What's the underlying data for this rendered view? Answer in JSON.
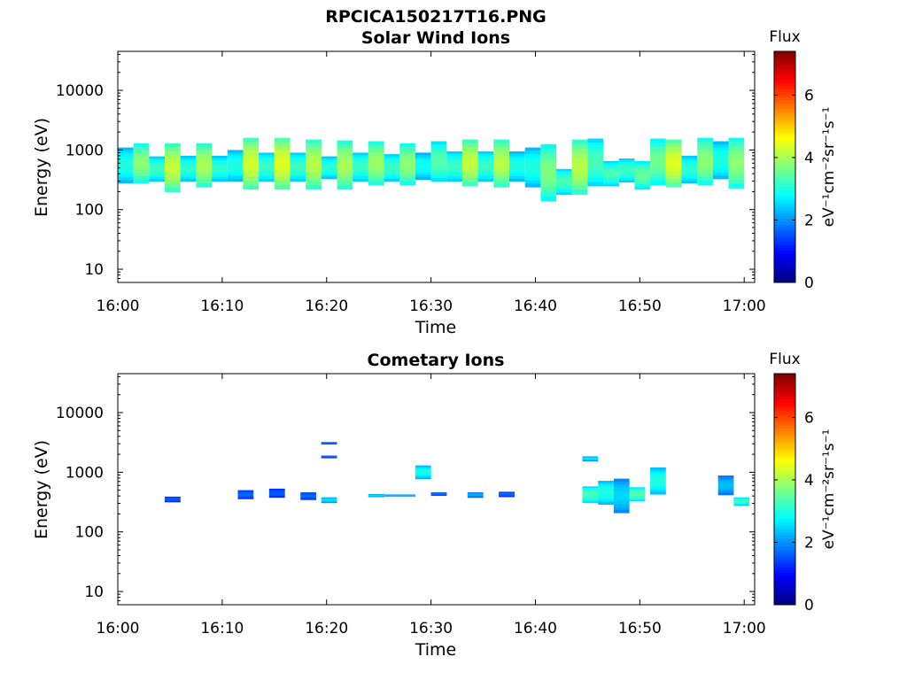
{
  "figure": {
    "file_title": "RPCICA150217T16.PNG"
  },
  "chart_data": [
    {
      "type": "heatmap",
      "title": "Solar Wind Ions",
      "xlabel": "Time",
      "ylabel": "Energy (eV)",
      "xlim": [
        "16:00",
        "17:01"
      ],
      "x_ticks": [
        "16:00",
        "16:10",
        "16:20",
        "16:30",
        "16:40",
        "16:50",
        "17:00"
      ],
      "ylim": [
        6,
        45000
      ],
      "yscale": "log",
      "y_ticks": [
        {
          "value": 10,
          "label": "10"
        },
        {
          "value": 100,
          "label": "100"
        },
        {
          "value": 1000,
          "label": "1000"
        },
        {
          "value": 10000,
          "label": "10000"
        }
      ],
      "colorbar": {
        "label": "Flux",
        "units": "eV⁻¹cm⁻²sr⁻¹s⁻¹",
        "range": [
          0,
          7.4
        ],
        "ticks": [
          0,
          2,
          4,
          6
        ],
        "colormap": "jet"
      },
      "grid": false,
      "cells": [
        {
          "t0": "16:00",
          "t1": "16:01.5",
          "e_min": 280,
          "e_max": 1100,
          "flux": 3.0
        },
        {
          "t0": "16:01.5",
          "t1": "16:03",
          "e_min": 280,
          "e_max": 1300,
          "flux": 3.8
        },
        {
          "t0": "16:03",
          "t1": "16:04.5",
          "e_min": 300,
          "e_max": 780,
          "flux": 3.2
        },
        {
          "t0": "16:04.5",
          "t1": "16:06",
          "e_min": 200,
          "e_max": 1300,
          "flux": 4.2
        },
        {
          "t0": "16:06",
          "t1": "16:07.5",
          "e_min": 300,
          "e_max": 800,
          "flux": 3.1
        },
        {
          "t0": "16:07.5",
          "t1": "16:09",
          "e_min": 240,
          "e_max": 1300,
          "flux": 4.0
        },
        {
          "t0": "16:09",
          "t1": "16:10.5",
          "e_min": 300,
          "e_max": 800,
          "flux": 3.1
        },
        {
          "t0": "16:10.5",
          "t1": "16:12",
          "e_min": 300,
          "e_max": 1000,
          "flux": 3.0
        },
        {
          "t0": "16:12",
          "t1": "16:13.5",
          "e_min": 220,
          "e_max": 1600,
          "flux": 4.3
        },
        {
          "t0": "16:13.5",
          "t1": "16:15",
          "e_min": 300,
          "e_max": 900,
          "flux": 3.2
        },
        {
          "t0": "16:15",
          "t1": "16:16.5",
          "e_min": 220,
          "e_max": 1600,
          "flux": 4.4
        },
        {
          "t0": "16:16.5",
          "t1": "16:18",
          "e_min": 300,
          "e_max": 900,
          "flux": 3.2
        },
        {
          "t0": "16:18",
          "t1": "16:19.5",
          "e_min": 220,
          "e_max": 1500,
          "flux": 4.1
        },
        {
          "t0": "16:19.5",
          "t1": "16:21",
          "e_min": 330,
          "e_max": 780,
          "flux": 3.1
        },
        {
          "t0": "16:21",
          "t1": "16:22.5",
          "e_min": 220,
          "e_max": 1450,
          "flux": 4.0
        },
        {
          "t0": "16:22.5",
          "t1": "16:24",
          "e_min": 300,
          "e_max": 900,
          "flux": 3.2
        },
        {
          "t0": "16:24",
          "t1": "16:25.5",
          "e_min": 260,
          "e_max": 1400,
          "flux": 3.9
        },
        {
          "t0": "16:25.5",
          "t1": "16:27",
          "e_min": 300,
          "e_max": 850,
          "flux": 3.2
        },
        {
          "t0": "16:27",
          "t1": "16:28.5",
          "e_min": 260,
          "e_max": 1300,
          "flux": 3.8
        },
        {
          "t0": "16:28.5",
          "t1": "16:30",
          "e_min": 320,
          "e_max": 900,
          "flux": 2.9
        },
        {
          "t0": "16:30",
          "t1": "16:31.5",
          "e_min": 300,
          "e_max": 1400,
          "flux": 3.4
        },
        {
          "t0": "16:31.5",
          "t1": "16:33",
          "e_min": 300,
          "e_max": 950,
          "flux": 3.2
        },
        {
          "t0": "16:33",
          "t1": "16:34.5",
          "e_min": 250,
          "e_max": 1500,
          "flux": 4.2
        },
        {
          "t0": "16:34.5",
          "t1": "16:36",
          "e_min": 300,
          "e_max": 950,
          "flux": 3.2
        },
        {
          "t0": "16:36",
          "t1": "16:37.5",
          "e_min": 240,
          "e_max": 1500,
          "flux": 4.1
        },
        {
          "t0": "16:37.5",
          "t1": "16:39",
          "e_min": 300,
          "e_max": 950,
          "flux": 3.0
        },
        {
          "t0": "16:39",
          "t1": "16:40.5",
          "e_min": 240,
          "e_max": 1100,
          "flux": 3.0
        },
        {
          "t0": "16:40.5",
          "t1": "16:42",
          "e_min": 140,
          "e_max": 1250,
          "flux": 3.7
        },
        {
          "t0": "16:42",
          "t1": "16:43.5",
          "e_min": 180,
          "e_max": 480,
          "flux": 3.3
        },
        {
          "t0": "16:43.5",
          "t1": "16:45",
          "e_min": 180,
          "e_max": 1500,
          "flux": 4.1
        },
        {
          "t0": "16:45",
          "t1": "16:46.5",
          "e_min": 250,
          "e_max": 1550,
          "flux": 3.3
        },
        {
          "t0": "16:46.5",
          "t1": "16:48",
          "e_min": 250,
          "e_max": 650,
          "flux": 3.3
        },
        {
          "t0": "16:48",
          "t1": "16:49.5",
          "e_min": 290,
          "e_max": 720,
          "flux": 3.2
        },
        {
          "t0": "16:49.5",
          "t1": "16:51",
          "e_min": 220,
          "e_max": 650,
          "flux": 3.5
        },
        {
          "t0": "16:51",
          "t1": "16:52.5",
          "e_min": 260,
          "e_max": 1550,
          "flux": 3.6
        },
        {
          "t0": "16:52.5",
          "t1": "16:54",
          "e_min": 240,
          "e_max": 1500,
          "flux": 4.4
        },
        {
          "t0": "16:54",
          "t1": "16:55.5",
          "e_min": 280,
          "e_max": 800,
          "flux": 3.1
        },
        {
          "t0": "16:55.5",
          "t1": "16:57",
          "e_min": 260,
          "e_max": 1600,
          "flux": 3.8
        },
        {
          "t0": "16:57",
          "t1": "16:58.5",
          "e_min": 330,
          "e_max": 1400,
          "flux": 3.0
        },
        {
          "t0": "16:58.5",
          "t1": "17:00",
          "e_min": 230,
          "e_max": 1600,
          "flux": 3.8
        }
      ]
    },
    {
      "type": "heatmap",
      "title": "Cometary Ions",
      "xlabel": "Time",
      "ylabel": "Energy (eV)",
      "xlim": [
        "16:00",
        "17:01"
      ],
      "x_ticks": [
        "16:00",
        "16:10",
        "16:20",
        "16:30",
        "16:40",
        "16:50",
        "17:00"
      ],
      "ylim": [
        6,
        45000
      ],
      "yscale": "log",
      "y_ticks": [
        {
          "value": 10,
          "label": "10"
        },
        {
          "value": 100,
          "label": "100"
        },
        {
          "value": 1000,
          "label": "1000"
        },
        {
          "value": 10000,
          "label": "10000"
        }
      ],
      "colorbar": {
        "label": "Flux",
        "units": "eV⁻¹cm⁻²sr⁻¹s⁻¹",
        "range": [
          0,
          7.4
        ],
        "ticks": [
          0,
          2,
          4,
          6
        ],
        "colormap": "jet"
      },
      "grid": false,
      "cells": [
        {
          "t0": "16:04.5",
          "t1": "16:06",
          "e_min": 320,
          "e_max": 390,
          "flux": 1.6
        },
        {
          "t0": "16:11.5",
          "t1": "16:13",
          "e_min": 360,
          "e_max": 500,
          "flux": 1.7
        },
        {
          "t0": "16:14.5",
          "t1": "16:16",
          "e_min": 380,
          "e_max": 530,
          "flux": 1.6
        },
        {
          "t0": "16:17.5",
          "t1": "16:19",
          "e_min": 350,
          "e_max": 460,
          "flux": 1.7
        },
        {
          "t0": "16:19.5",
          "t1": "16:21",
          "e_min": 310,
          "e_max": 380,
          "flux": 2.6
        },
        {
          "t0": "16:19.5",
          "t1": "16:21",
          "e_min": 1750,
          "e_max": 1900,
          "flux": 1.7
        },
        {
          "t0": "16:19.5",
          "t1": "16:21",
          "e_min": 3000,
          "e_max": 3200,
          "flux": 1.8
        },
        {
          "t0": "16:24",
          "t1": "16:25.5",
          "e_min": 390,
          "e_max": 430,
          "flux": 2.6
        },
        {
          "t0": "16:25.5",
          "t1": "16:28.5",
          "e_min": 400,
          "e_max": 425,
          "flux": 2.4
        },
        {
          "t0": "16:28.5",
          "t1": "16:30",
          "e_min": 780,
          "e_max": 1300,
          "flux": 2.9
        },
        {
          "t0": "16:30",
          "t1": "16:31.5",
          "e_min": 410,
          "e_max": 460,
          "flux": 1.8
        },
        {
          "t0": "16:33.5",
          "t1": "16:35",
          "e_min": 380,
          "e_max": 460,
          "flux": 2.2
        },
        {
          "t0": "16:36.5",
          "t1": "16:38",
          "e_min": 390,
          "e_max": 470,
          "flux": 1.7
        },
        {
          "t0": "16:44.5",
          "t1": "16:46",
          "e_min": 1550,
          "e_max": 1850,
          "flux": 2.6
        },
        {
          "t0": "16:44.5",
          "t1": "16:46",
          "e_min": 310,
          "e_max": 580,
          "flux": 3.3
        },
        {
          "t0": "16:46",
          "t1": "16:47.5",
          "e_min": 290,
          "e_max": 720,
          "flux": 3.0
        },
        {
          "t0": "16:47.5",
          "t1": "16:49",
          "e_min": 210,
          "e_max": 780,
          "flux": 2.5
        },
        {
          "t0": "16:49",
          "t1": "16:50.5",
          "e_min": 330,
          "e_max": 560,
          "flux": 3.4
        },
        {
          "t0": "16:51",
          "t1": "16:52.5",
          "e_min": 430,
          "e_max": 1200,
          "flux": 3.0
        },
        {
          "t0": "16:57.5",
          "t1": "16:59",
          "e_min": 420,
          "e_max": 880,
          "flux": 2.3
        },
        {
          "t0": "16:59",
          "t1": "17:00.5",
          "e_min": 280,
          "e_max": 380,
          "flux": 3.2
        }
      ]
    }
  ]
}
